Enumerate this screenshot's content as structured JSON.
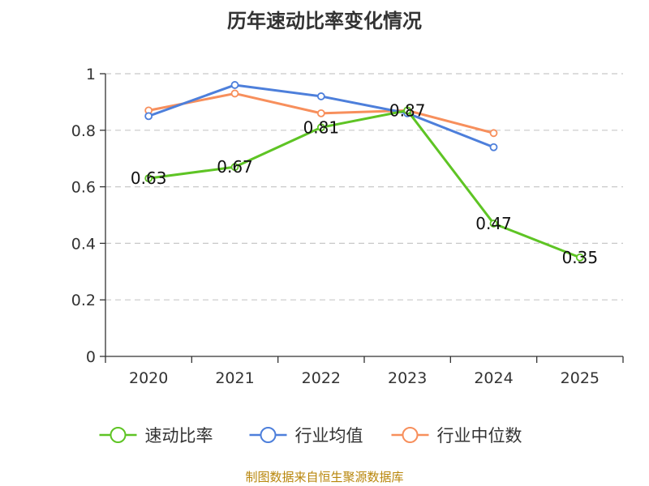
{
  "chart_data": {
    "type": "line",
    "title": "历年速动比率变化情况",
    "categories": [
      "2020",
      "2021",
      "2022",
      "2023",
      "2024",
      "2025"
    ],
    "y_ticks": [
      "0",
      "0.2",
      "0.4",
      "0.6",
      "0.8",
      "1"
    ],
    "ylim": [
      0,
      1
    ],
    "grid": true,
    "legend_position": "bottom",
    "series": [
      {
        "name": "速动比率",
        "color": "#5ec424",
        "values": [
          0.63,
          0.67,
          0.81,
          0.87,
          0.47,
          0.35
        ],
        "labels": [
          "0.63",
          "0.67",
          "0.81",
          "0.87",
          "0.47",
          "0.35"
        ]
      },
      {
        "name": "行业均值",
        "color": "#4d7fdb",
        "values": [
          0.85,
          0.96,
          0.92,
          0.86,
          0.74,
          null
        ]
      },
      {
        "name": "行业中位数",
        "color": "#f78f5c",
        "values": [
          0.87,
          0.93,
          0.86,
          0.87,
          0.79,
          null
        ]
      }
    ]
  },
  "footer": {
    "source": "制图数据来自恒生聚源数据库"
  }
}
